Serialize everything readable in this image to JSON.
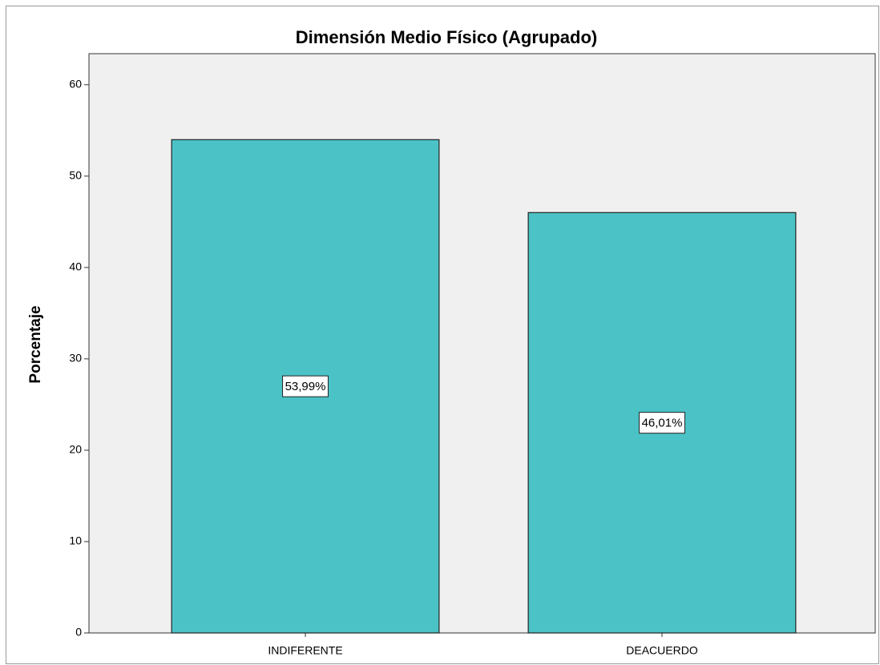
{
  "chart_data": {
    "type": "bar",
    "title": "Dimensión Medio Físico (Agrupado)",
    "y_label": "Porcentaje",
    "categories": [
      "INDIFERENTE",
      "DEACUERDO"
    ],
    "values": [
      53.99,
      46.01
    ],
    "value_labels": [
      "53,99%",
      "46,01%"
    ],
    "color": "#4bc2c5",
    "ylim": [
      0,
      63.4
    ],
    "yticks": [
      0,
      10,
      20,
      30,
      40,
      50,
      60
    ],
    "grid": false
  }
}
